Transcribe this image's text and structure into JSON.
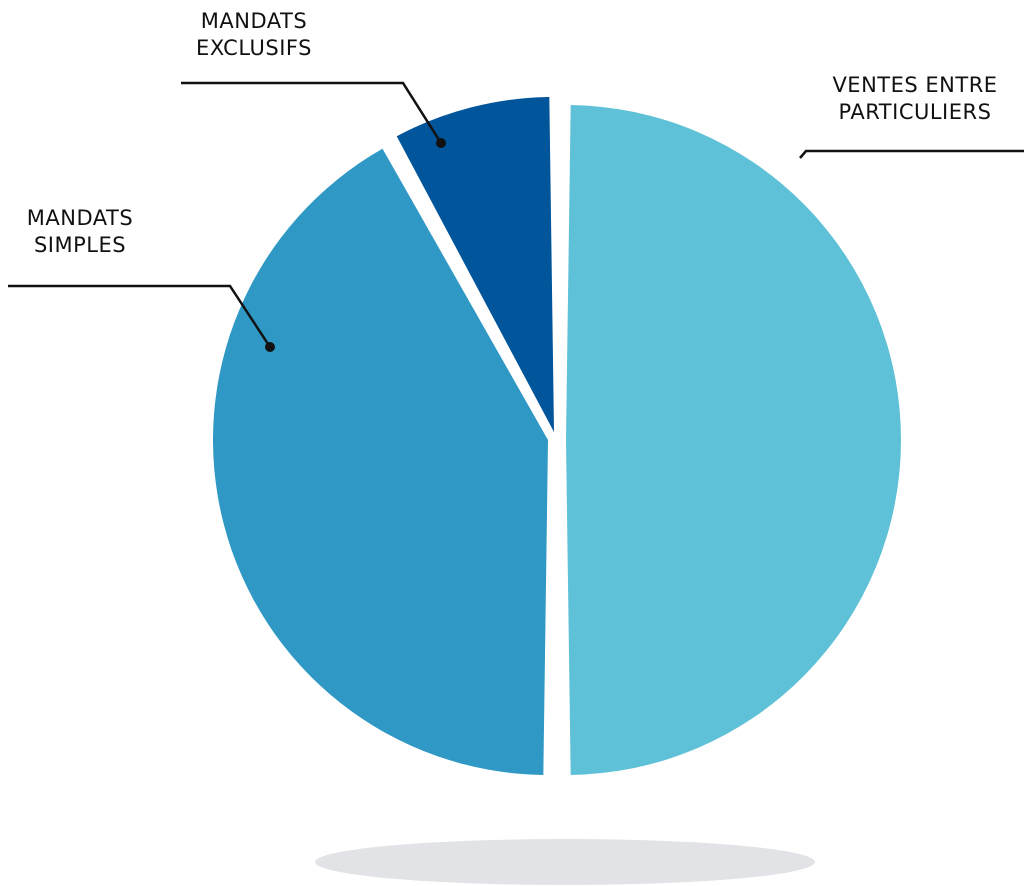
{
  "chart_data": {
    "type": "pie",
    "title": "",
    "slices": [
      {
        "label_lines": [
          "VENTES ENTRE",
          "PARTICULIERS"
        ],
        "value": 50,
        "color": "#5fc1d7"
      },
      {
        "label_lines": [
          "MANDATS",
          "SIMPLES"
        ],
        "value": 42,
        "color": "#2f98c5"
      },
      {
        "label_lines": [
          "MANDATS",
          "EXCLUSIFS"
        ],
        "value": 8,
        "color": "#00559b"
      }
    ],
    "background_color": "#ffffff",
    "shadow_color": "#e2e3e6"
  }
}
